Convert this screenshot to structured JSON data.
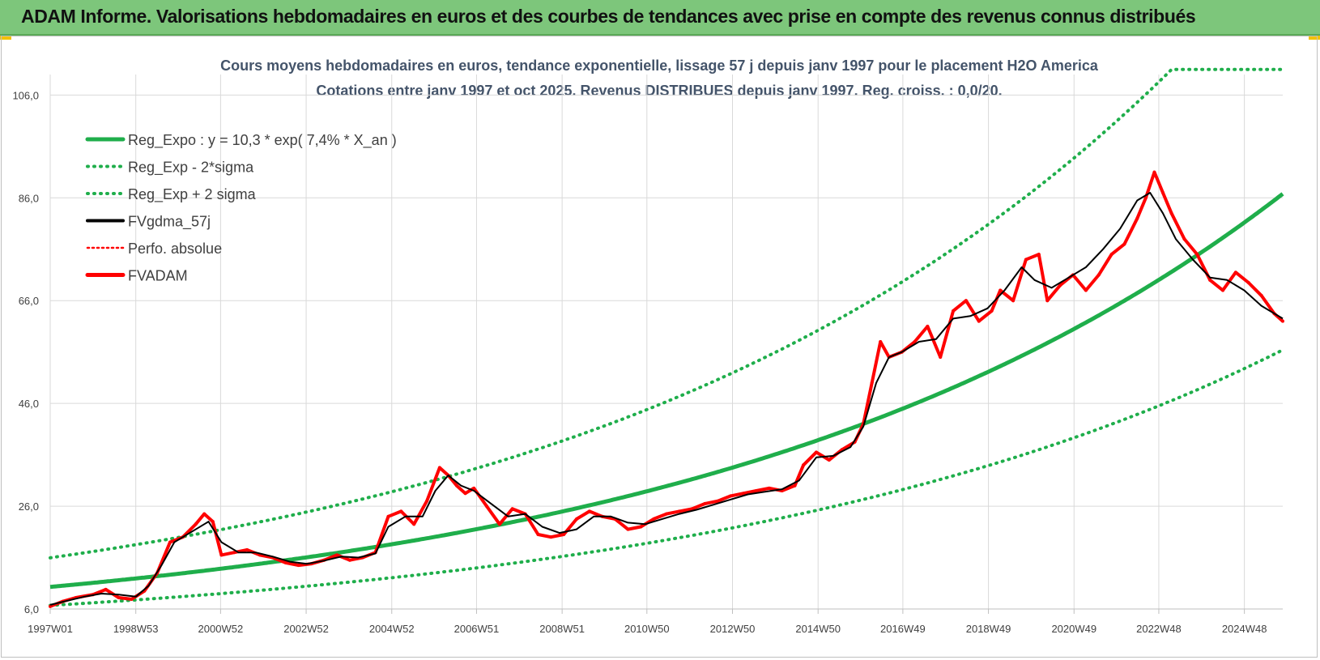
{
  "header": {
    "title": "ADAM Informe. Valorisations hebdomadaires en euros et des courbes de tendances avec prise en compte des revenus connus distribués"
  },
  "colors": {
    "banner": "#7dc67b",
    "green": "#1fae4b",
    "black": "#000000",
    "red": "#ff0000",
    "grid": "#d9d9d9"
  },
  "chart_data": {
    "type": "line",
    "title": "Cours moyens hebdomadaires en euros, tendance exponentielle, lissage 57 j depuis janv 1997 pour le placement H2O America",
    "subtitle": "Cotations entre janv 1997 et oct 2025. Revenus DISTRIBUES depuis janv 1997. Reg. croiss. : 0,0/20.",
    "xlabel": "",
    "ylabel": "",
    "ylim": [
      6,
      110
    ],
    "yticks": [
      "106,0",
      "86,0",
      "66,0",
      "46,0",
      "26,0",
      "6,0"
    ],
    "xticks": [
      "1997W01",
      "1998W53",
      "2000W52",
      "2002W52",
      "2004W52",
      "2006W51",
      "2008W51",
      "2010W50",
      "2012W50",
      "2014W50",
      "2016W49",
      "2018W49",
      "2020W49",
      "2022W48",
      "2024W48"
    ],
    "x_range_years": [
      1997.0,
      2025.8
    ],
    "grid": true,
    "legend_position": "top-left",
    "legend": [
      {
        "key": "reg",
        "label": "Reg_Expo : y = 10,3 * exp( 7,4% *  X_an )"
      },
      {
        "key": "low",
        "label": "Reg_Exp - 2*sigma"
      },
      {
        "key": "high",
        "label": "Reg_Exp + 2 sigma"
      },
      {
        "key": "mma",
        "label": "FVgdma_57j"
      },
      {
        "key": "perf",
        "label": "Perfo. absolue"
      },
      {
        "key": "fv",
        "label": "FVADAM"
      }
    ],
    "regression": {
      "a": 10.3,
      "rate": 0.074
    },
    "band_factors": {
      "low": 0.65,
      "high": 1.55
    },
    "band_cap": 111,
    "series_fvadam": {
      "x": [
        1997.0,
        1997.3,
        1997.6,
        1998.0,
        1998.3,
        1998.6,
        1998.9,
        1999.2,
        1999.5,
        1999.8,
        2000.1,
        2000.4,
        2000.6,
        2000.8,
        2001.0,
        2001.3,
        2001.6,
        2001.9,
        2002.2,
        2002.5,
        2002.8,
        2003.1,
        2003.4,
        2003.7,
        2004.0,
        2004.3,
        2004.6,
        2004.9,
        2005.2,
        2005.5,
        2005.8,
        2006.1,
        2006.3,
        2006.5,
        2006.7,
        2006.9,
        2007.2,
        2007.5,
        2007.8,
        2008.1,
        2008.4,
        2008.7,
        2009.0,
        2009.3,
        2009.6,
        2009.9,
        2010.2,
        2010.5,
        2010.8,
        2011.1,
        2011.4,
        2011.7,
        2012.0,
        2012.3,
        2012.6,
        2012.9,
        2013.2,
        2013.5,
        2013.8,
        2014.1,
        2014.4,
        2014.6,
        2014.9,
        2015.2,
        2015.5,
        2015.8,
        2016.0,
        2016.2,
        2016.4,
        2016.6,
        2016.9,
        2017.2,
        2017.5,
        2017.8,
        2018.1,
        2018.4,
        2018.7,
        2019.0,
        2019.2,
        2019.5,
        2019.8,
        2020.1,
        2020.3,
        2020.6,
        2020.9,
        2021.2,
        2021.5,
        2021.8,
        2022.1,
        2022.4,
        2022.6,
        2022.8,
        2023.0,
        2023.2,
        2023.5,
        2023.8,
        2024.1,
        2024.4,
        2024.7,
        2025.0,
        2025.3,
        2025.6,
        2025.8
      ],
      "y": [
        6.5,
        7.5,
        8.2,
        8.8,
        9.8,
        8.2,
        7.9,
        9.5,
        13.0,
        19.0,
        20.0,
        22.5,
        24.5,
        23.0,
        16.5,
        17.0,
        17.5,
        16.5,
        16.0,
        15.0,
        14.5,
        14.8,
        15.5,
        16.5,
        15.5,
        16.0,
        17.0,
        24.0,
        25.0,
        22.5,
        27.0,
        33.5,
        32.0,
        30.0,
        28.5,
        29.5,
        26.0,
        22.5,
        25.5,
        24.5,
        20.5,
        20.0,
        20.5,
        23.5,
        25.0,
        24.0,
        23.5,
        21.5,
        22.0,
        23.5,
        24.5,
        25.0,
        25.5,
        26.5,
        27.0,
        28.0,
        28.5,
        29.0,
        29.5,
        29.0,
        30.0,
        34.0,
        36.5,
        35.0,
        37.0,
        38.5,
        42.0,
        50.0,
        58.0,
        55.0,
        56.0,
        58.0,
        61.0,
        55.0,
        64.0,
        66.0,
        62.0,
        64.0,
        68.0,
        66.0,
        74.0,
        75.0,
        66.0,
        69.0,
        71.0,
        68.0,
        71.0,
        75.0,
        77.0,
        82.0,
        86.0,
        91.0,
        87.0,
        83.0,
        78.0,
        75.0,
        70.0,
        68.0,
        71.5,
        69.5,
        67.0,
        63.5,
        62.0
      ]
    },
    "series_mma": {
      "x": [
        1997.0,
        1997.4,
        1997.8,
        1998.2,
        1998.6,
        1999.0,
        1999.3,
        1999.6,
        1999.9,
        2000.3,
        2000.7,
        2001.0,
        2001.4,
        2001.8,
        2002.2,
        2002.6,
        2003.0,
        2003.4,
        2003.8,
        2004.2,
        2004.6,
        2004.9,
        2005.3,
        2005.7,
        2006.0,
        2006.3,
        2006.6,
        2006.9,
        2007.3,
        2007.7,
        2008.1,
        2008.5,
        2008.9,
        2009.3,
        2009.7,
        2010.1,
        2010.5,
        2010.9,
        2011.3,
        2011.7,
        2012.1,
        2012.5,
        2012.9,
        2013.3,
        2013.7,
        2014.1,
        2014.5,
        2014.9,
        2015.3,
        2015.7,
        2016.0,
        2016.3,
        2016.6,
        2016.9,
        2017.3,
        2017.7,
        2018.1,
        2018.5,
        2018.9,
        2019.3,
        2019.7,
        2020.0,
        2020.4,
        2020.8,
        2021.2,
        2021.6,
        2022.0,
        2022.4,
        2022.7,
        2023.0,
        2023.3,
        2023.7,
        2024.1,
        2024.5,
        2024.9,
        2025.3,
        2025.8
      ],
      "y": [
        6.8,
        7.6,
        8.4,
        9.0,
        8.8,
        8.4,
        10.5,
        14.5,
        19.0,
        21.0,
        23.0,
        19.0,
        17.0,
        17.0,
        16.2,
        15.2,
        14.8,
        15.4,
        16.2,
        16.0,
        16.8,
        22.0,
        24.0,
        24.0,
        29.0,
        32.0,
        30.0,
        29.0,
        26.5,
        24.0,
        24.5,
        22.0,
        20.8,
        21.5,
        24.0,
        24.0,
        22.8,
        22.5,
        23.5,
        24.5,
        25.3,
        26.3,
        27.3,
        28.3,
        28.8,
        29.3,
        31.0,
        35.5,
        35.8,
        37.5,
        41.5,
        50.0,
        55.0,
        56.0,
        58.0,
        58.5,
        62.5,
        63.0,
        64.5,
        68.0,
        72.5,
        70.0,
        68.5,
        70.5,
        72.5,
        76.0,
        80.0,
        85.5,
        87.0,
        83.0,
        78.0,
        74.0,
        70.5,
        70.0,
        68.0,
        65.0,
        62.5
      ]
    }
  }
}
